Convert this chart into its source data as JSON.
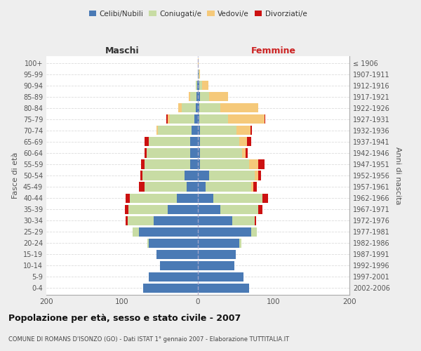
{
  "age_groups": [
    "0-4",
    "5-9",
    "10-14",
    "15-19",
    "20-24",
    "25-29",
    "30-34",
    "35-39",
    "40-44",
    "45-49",
    "50-54",
    "55-59",
    "60-64",
    "65-69",
    "70-74",
    "75-79",
    "80-84",
    "85-89",
    "90-94",
    "95-99",
    "100+"
  ],
  "birth_years": [
    "2002-2006",
    "1997-2001",
    "1992-1996",
    "1987-1991",
    "1982-1986",
    "1977-1981",
    "1972-1976",
    "1967-1971",
    "1962-1966",
    "1957-1961",
    "1952-1956",
    "1947-1951",
    "1942-1946",
    "1937-1941",
    "1932-1936",
    "1927-1931",
    "1922-1926",
    "1917-1921",
    "1912-1916",
    "1907-1911",
    "≤ 1906"
  ],
  "colors": {
    "celibi": "#4a7ab5",
    "coniugati": "#c8dca4",
    "vedovi": "#f5c97a",
    "divorziati": "#cc1111"
  },
  "maschi_celibi": [
    72,
    65,
    50,
    55,
    65,
    78,
    58,
    40,
    28,
    15,
    18,
    10,
    10,
    10,
    8,
    5,
    3,
    2,
    1,
    0,
    0
  ],
  "maschi_coniugati": [
    0,
    0,
    0,
    0,
    2,
    8,
    35,
    52,
    62,
    55,
    55,
    60,
    58,
    55,
    45,
    32,
    18,
    8,
    2,
    0,
    0
  ],
  "maschi_vedovi": [
    0,
    0,
    0,
    0,
    0,
    0,
    0,
    0,
    0,
    0,
    0,
    0,
    0,
    0,
    2,
    3,
    5,
    2,
    0,
    0,
    0
  ],
  "maschi_divorziati": [
    0,
    0,
    0,
    0,
    0,
    0,
    2,
    4,
    5,
    8,
    3,
    5,
    2,
    5,
    0,
    2,
    0,
    0,
    0,
    0,
    0
  ],
  "femmine_celibi": [
    68,
    60,
    48,
    50,
    55,
    70,
    45,
    30,
    20,
    10,
    15,
    3,
    3,
    3,
    3,
    2,
    2,
    3,
    2,
    1,
    0
  ],
  "femmine_coniugati": [
    0,
    0,
    0,
    0,
    2,
    8,
    30,
    50,
    65,
    60,
    60,
    65,
    55,
    52,
    48,
    38,
    28,
    12,
    4,
    1,
    0
  ],
  "femmine_vedovi": [
    0,
    0,
    0,
    0,
    0,
    0,
    0,
    0,
    0,
    3,
    5,
    12,
    5,
    10,
    18,
    48,
    50,
    25,
    8,
    1,
    1
  ],
  "femmine_divorziati": [
    0,
    0,
    0,
    0,
    0,
    0,
    2,
    5,
    8,
    5,
    3,
    8,
    3,
    5,
    2,
    1,
    0,
    0,
    0,
    0,
    0
  ],
  "title": "Popolazione per età, sesso e stato civile - 2007",
  "subtitle": "COMUNE DI ROMANS D'ISONZO (GO) - Dati ISTAT 1° gennaio 2007 - Elaborazione TUTTITALIA.IT",
  "xlim": 200,
  "bg_color": "#eeeeee",
  "plot_bg": "#ffffff"
}
